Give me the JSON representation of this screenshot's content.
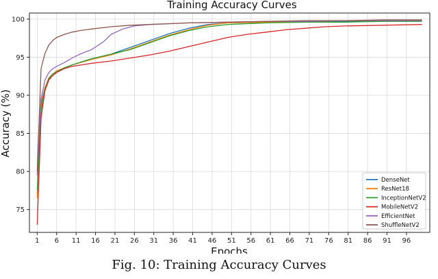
{
  "caption": "Fig. 10: Training Accuracy Curves",
  "chart_data": {
    "type": "line",
    "title": "Training Accuracy Curves",
    "xlabel": "Epochs",
    "ylabel": "Accuracy (%)",
    "xlim": [
      -1,
      102
    ],
    "ylim": [
      72,
      100.8
    ],
    "xticks": [
      1,
      6,
      11,
      16,
      21,
      26,
      31,
      36,
      41,
      46,
      51,
      56,
      61,
      66,
      71,
      76,
      81,
      86,
      91,
      96
    ],
    "yticks": [
      75,
      80,
      85,
      90,
      95,
      100
    ],
    "grid": true,
    "legend_position": "lower-right",
    "series": [
      {
        "name": "DenseNet",
        "color": "#1f77b4",
        "points": [
          [
            1,
            77.0
          ],
          [
            2,
            89.0
          ],
          [
            3,
            91.0
          ],
          [
            4,
            92.2
          ],
          [
            5,
            92.8
          ],
          [
            6,
            93.1
          ],
          [
            8,
            93.6
          ],
          [
            10,
            94.0
          ],
          [
            15,
            94.8
          ],
          [
            20,
            95.4
          ],
          [
            25,
            96.3
          ],
          [
            30,
            97.2
          ],
          [
            35,
            98.1
          ],
          [
            40,
            98.8
          ],
          [
            45,
            99.3
          ],
          [
            50,
            99.5
          ],
          [
            60,
            99.6
          ],
          [
            70,
            99.7
          ],
          [
            80,
            99.7
          ],
          [
            90,
            99.8
          ],
          [
            100,
            99.8
          ]
        ]
      },
      {
        "name": "ResNet18",
        "color": "#ff7f0e",
        "points": [
          [
            1,
            76.5
          ],
          [
            2,
            88.5
          ],
          [
            3,
            91.0
          ],
          [
            4,
            92.3
          ],
          [
            5,
            92.8
          ],
          [
            6,
            93.2
          ],
          [
            8,
            93.6
          ],
          [
            10,
            94.0
          ],
          [
            15,
            94.7
          ],
          [
            20,
            95.3
          ],
          [
            25,
            96.1
          ],
          [
            30,
            97.0
          ],
          [
            35,
            97.9
          ],
          [
            40,
            98.6
          ],
          [
            45,
            99.2
          ],
          [
            50,
            99.5
          ],
          [
            60,
            99.6
          ],
          [
            70,
            99.7
          ],
          [
            80,
            99.8
          ],
          [
            90,
            99.8
          ],
          [
            100,
            99.8
          ]
        ]
      },
      {
        "name": "InceptionNetV2",
        "color": "#2ca02c",
        "points": [
          [
            1,
            77.5
          ],
          [
            2,
            88.0
          ],
          [
            3,
            90.8
          ],
          [
            4,
            92.2
          ],
          [
            5,
            92.8
          ],
          [
            6,
            93.1
          ],
          [
            8,
            93.6
          ],
          [
            10,
            94.0
          ],
          [
            15,
            94.8
          ],
          [
            20,
            95.4
          ],
          [
            25,
            96.0
          ],
          [
            30,
            96.9
          ],
          [
            35,
            97.8
          ],
          [
            40,
            98.5
          ],
          [
            45,
            99.0
          ],
          [
            50,
            99.3
          ],
          [
            60,
            99.5
          ],
          [
            70,
            99.6
          ],
          [
            80,
            99.6
          ],
          [
            90,
            99.7
          ],
          [
            100,
            99.7
          ]
        ]
      },
      {
        "name": "MobileNetV2",
        "color": "#d62728",
        "points": [
          [
            1,
            73.0
          ],
          [
            2,
            87.0
          ],
          [
            3,
            90.6
          ],
          [
            4,
            92.0
          ],
          [
            5,
            92.6
          ],
          [
            6,
            93.0
          ],
          [
            8,
            93.5
          ],
          [
            10,
            93.8
          ],
          [
            15,
            94.2
          ],
          [
            20,
            94.5
          ],
          [
            25,
            94.9
          ],
          [
            30,
            95.3
          ],
          [
            35,
            95.8
          ],
          [
            40,
            96.4
          ],
          [
            45,
            97.0
          ],
          [
            50,
            97.6
          ],
          [
            55,
            98.0
          ],
          [
            60,
            98.3
          ],
          [
            65,
            98.6
          ],
          [
            70,
            98.8
          ],
          [
            75,
            99.0
          ],
          [
            80,
            99.1
          ],
          [
            90,
            99.2
          ],
          [
            100,
            99.3
          ]
        ]
      },
      {
        "name": "EfficientNet",
        "color": "#9467bd",
        "points": [
          [
            1,
            79.5
          ],
          [
            2,
            89.5
          ],
          [
            3,
            92.0
          ],
          [
            4,
            93.0
          ],
          [
            5,
            93.5
          ],
          [
            6,
            93.8
          ],
          [
            8,
            94.3
          ],
          [
            10,
            94.9
          ],
          [
            12,
            95.4
          ],
          [
            15,
            96.0
          ],
          [
            18,
            97.0
          ],
          [
            20,
            98.0
          ],
          [
            23,
            98.7
          ],
          [
            26,
            99.1
          ],
          [
            30,
            99.3
          ],
          [
            40,
            99.5
          ],
          [
            50,
            99.6
          ],
          [
            60,
            99.7
          ],
          [
            70,
            99.7
          ],
          [
            80,
            99.8
          ],
          [
            90,
            99.8
          ],
          [
            100,
            99.8
          ]
        ]
      },
      {
        "name": "ShuffleNetV2",
        "color": "#8c564b",
        "points": [
          [
            1,
            80.0
          ],
          [
            2,
            93.5
          ],
          [
            3,
            95.5
          ],
          [
            4,
            96.6
          ],
          [
            5,
            97.2
          ],
          [
            6,
            97.6
          ],
          [
            8,
            98.0
          ],
          [
            10,
            98.3
          ],
          [
            12,
            98.5
          ],
          [
            15,
            98.7
          ],
          [
            20,
            99.0
          ],
          [
            25,
            99.2
          ],
          [
            30,
            99.3
          ],
          [
            40,
            99.5
          ],
          [
            50,
            99.6
          ],
          [
            60,
            99.7
          ],
          [
            70,
            99.8
          ],
          [
            80,
            99.8
          ],
          [
            90,
            99.9
          ],
          [
            100,
            99.9
          ]
        ]
      }
    ]
  }
}
